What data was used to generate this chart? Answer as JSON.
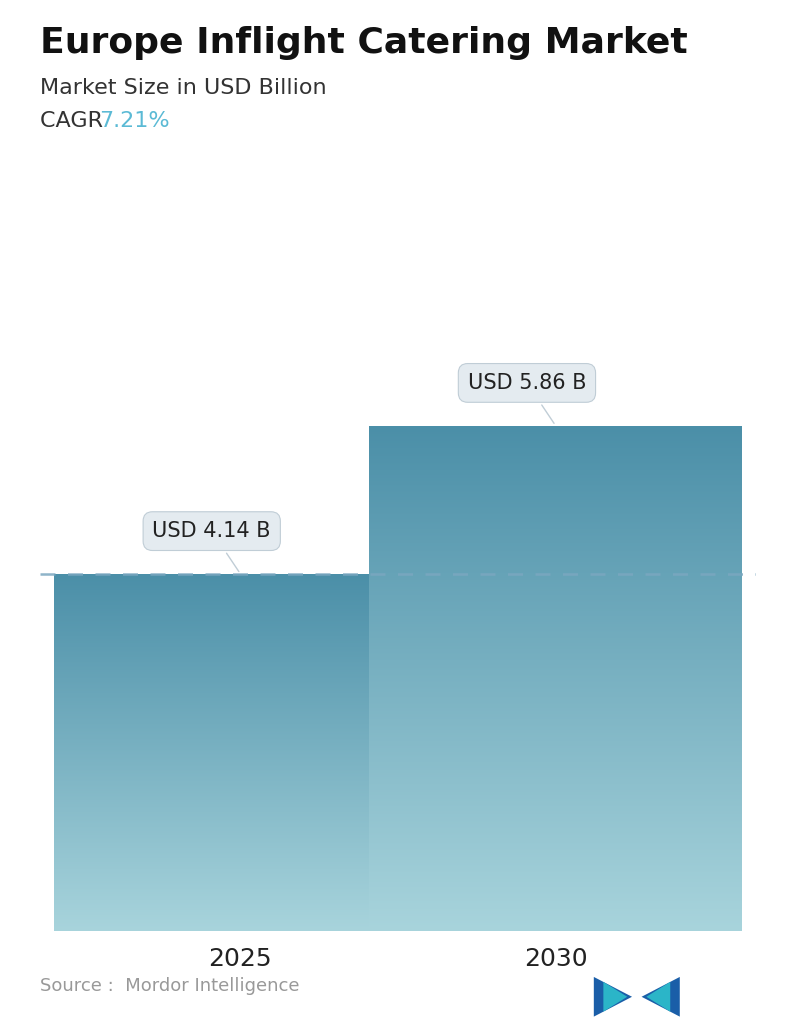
{
  "title": "Europe Inflight Catering Market",
  "subtitle": "Market Size in USD Billion",
  "cagr_label": "CAGR ",
  "cagr_value": "7.21%",
  "cagr_color": "#5BBAD5",
  "categories": [
    "2025",
    "2030"
  ],
  "values": [
    4.14,
    5.86
  ],
  "bar_labels": [
    "USD 4.14 B",
    "USD 5.86 B"
  ],
  "bar_top_color": "#4B8FA8",
  "bar_bottom_color": "#A8D4DC",
  "dashed_line_color": "#7BA7C0",
  "dashed_line_y": 4.14,
  "source_text": "Source :  Mordor Intelligence",
  "source_color": "#999999",
  "background_color": "#ffffff",
  "title_fontsize": 26,
  "subtitle_fontsize": 16,
  "cagr_fontsize": 16,
  "label_fontsize": 15,
  "xtick_fontsize": 18,
  "source_fontsize": 13,
  "ylim": [
    0,
    7.2
  ],
  "bar_width": 0.52,
  "bar_positions": [
    0.28,
    0.72
  ]
}
